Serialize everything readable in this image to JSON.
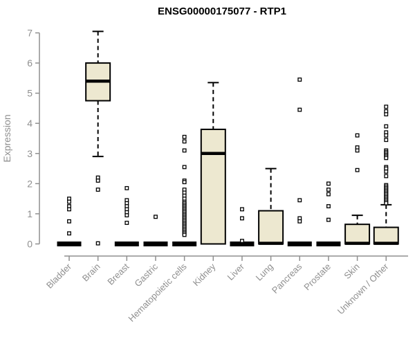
{
  "chart_data": {
    "type": "boxplot",
    "title": "ENSG00000175077 - RTP1",
    "ylabel": "Expression",
    "xlabel": "",
    "ylim": [
      0,
      7
    ],
    "yticks": [
      0,
      1,
      2,
      3,
      4,
      5,
      6,
      7
    ],
    "grid": false,
    "legend": false,
    "categories": [
      "Bladder",
      "Brain",
      "Breast",
      "Gastric",
      "Hematopoietic cells",
      "Kidney",
      "Liver",
      "Lung",
      "Pancreas",
      "Prostate",
      "Skin",
      "Unknown / Other"
    ],
    "series": [
      {
        "category": "Bladder",
        "whisker_low": 0,
        "q1": 0,
        "median": 0,
        "q3": 0,
        "whisker_high": 0,
        "outliers": [
          1.5,
          1.4,
          1.25,
          1.15,
          0.75,
          0.35
        ]
      },
      {
        "category": "Brain",
        "whisker_low": 2.9,
        "q1": 4.75,
        "median": 5.4,
        "q3": 6.0,
        "whisker_high": 7.05,
        "outliers": [
          2.2,
          2.1,
          1.8,
          0.02
        ]
      },
      {
        "category": "Breast",
        "whisker_low": 0,
        "q1": 0,
        "median": 0,
        "q3": 0,
        "whisker_high": 0,
        "outliers": [
          1.85,
          1.45,
          1.35,
          1.25,
          1.15,
          1.05,
          0.95,
          0.7
        ]
      },
      {
        "category": "Gastric",
        "whisker_low": 0,
        "q1": 0,
        "median": 0,
        "q3": 0,
        "whisker_high": 0,
        "outliers": [
          0.9
        ]
      },
      {
        "category": "Hematopoietic cells",
        "whisker_low": 0,
        "q1": 0,
        "median": 0,
        "q3": 0,
        "whisker_high": 0,
        "outliers": [
          3.55,
          3.4,
          3.1,
          2.55,
          2.1,
          2.05,
          1.8,
          1.7,
          1.6,
          1.5,
          1.4,
          1.35,
          1.3,
          1.25,
          1.2,
          1.15,
          1.1,
          1.05,
          1.0,
          0.95,
          0.9,
          0.85,
          0.8,
          0.75,
          0.7,
          0.65,
          0.6,
          0.55,
          0.5,
          0.45,
          0.4,
          0.35,
          0.3
        ]
      },
      {
        "category": "Kidney",
        "whisker_low": 0,
        "q1": 0,
        "median": 3.0,
        "q3": 3.8,
        "whisker_high": 5.35,
        "outliers": []
      },
      {
        "category": "Liver",
        "whisker_low": 0,
        "q1": 0,
        "median": 0,
        "q3": 0,
        "whisker_high": 0,
        "outliers": [
          1.15,
          0.85,
          0.1
        ]
      },
      {
        "category": "Lung",
        "whisker_low": 0,
        "q1": 0,
        "median": 0.02,
        "q3": 1.1,
        "whisker_high": 2.5,
        "outliers": []
      },
      {
        "category": "Pancreas",
        "whisker_low": 0,
        "q1": 0,
        "median": 0,
        "q3": 0,
        "whisker_high": 0,
        "outliers": [
          5.45,
          4.45,
          1.45,
          0.85,
          0.75
        ]
      },
      {
        "category": "Prostate",
        "whisker_low": 0,
        "q1": 0,
        "median": 0,
        "q3": 0,
        "whisker_high": 0,
        "outliers": [
          2.0,
          1.8,
          1.65,
          1.25,
          0.8
        ]
      },
      {
        "category": "Skin",
        "whisker_low": 0,
        "q1": 0,
        "median": 0.02,
        "q3": 0.65,
        "whisker_high": 0.95,
        "outliers": [
          3.6,
          3.2,
          3.1,
          2.45
        ]
      },
      {
        "category": "Unknown / Other",
        "whisker_low": 0,
        "q1": 0,
        "median": 0.02,
        "q3": 0.55,
        "whisker_high": 1.3,
        "outliers": [
          4.55,
          4.4,
          4.3,
          3.9,
          3.7,
          3.6,
          3.45,
          3.1,
          3.05,
          3.0,
          2.95,
          2.9,
          2.85,
          2.55,
          2.5,
          2.4,
          2.25,
          1.95,
          1.9,
          1.85,
          1.8,
          1.75,
          1.7,
          1.65,
          1.6,
          1.55,
          1.5,
          1.45,
          1.4,
          1.35
        ]
      }
    ],
    "colors": {
      "box_fill": "#EDE8D0",
      "box_stroke": "#000000",
      "median": "#000000",
      "whisker": "#000000",
      "flat_bar": "#000000",
      "outlier_stroke": "#000000",
      "outlier_fill": "#FFFFFF",
      "axis": "#8f8f8f",
      "tick_label": "#8f8f8f",
      "title": "#000000",
      "background": "#FFFFFF"
    }
  }
}
